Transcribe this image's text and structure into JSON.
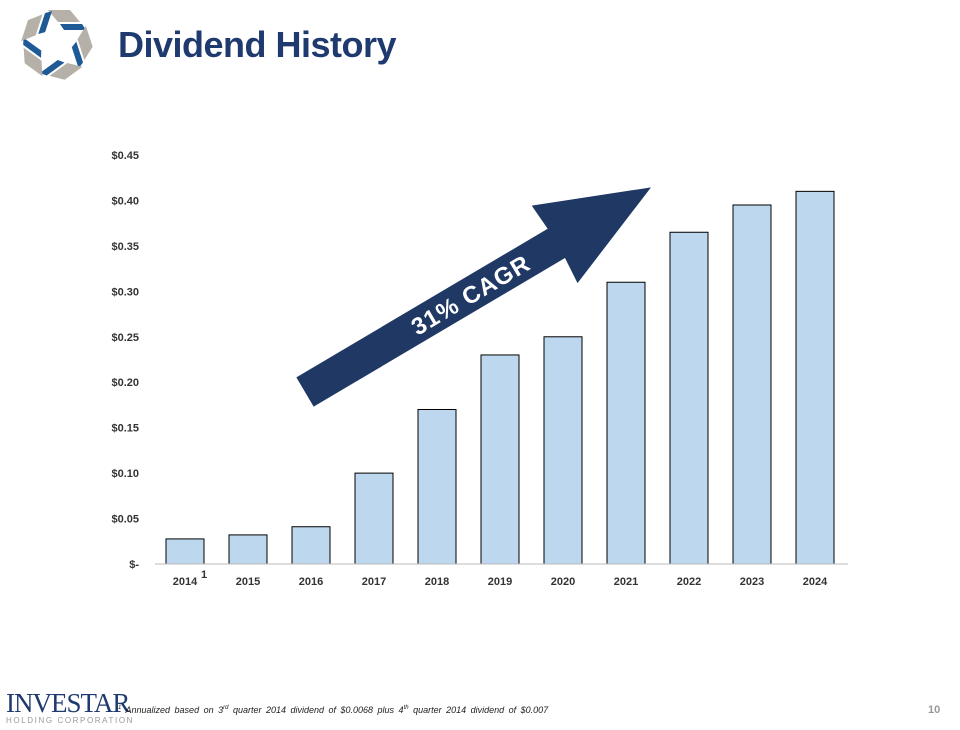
{
  "header": {
    "title": "Dividend History"
  },
  "footer": {
    "logo_name": "INVESTAR",
    "logo_sub": "HOLDING CORPORATION",
    "footnote_mark": "1",
    "footnote_parts": [
      "Annualized based on 3",
      "rd",
      " quarter 2014 dividend of $0.0068 plus 4",
      "th",
      " quarter 2014 dividend of $0.007"
    ],
    "page_number": "10"
  },
  "colors": {
    "bar_fill": "#bdd7ee",
    "bar_stroke": "#000000",
    "arrow": "#1f3864",
    "title": "#1f3a6e"
  },
  "chart_data": {
    "type": "bar",
    "categories": [
      "2014",
      "2015",
      "2016",
      "2017",
      "2018",
      "2019",
      "2020",
      "2021",
      "2022",
      "2023",
      "2024"
    ],
    "category_superscripts": {
      "2014": "1"
    },
    "values": [
      0.0276,
      0.032,
      0.041,
      0.1,
      0.17,
      0.23,
      0.25,
      0.31,
      0.365,
      0.395,
      0.41
    ],
    "ylim": [
      0,
      0.45
    ],
    "yticks": [
      0,
      0.05,
      0.1,
      0.15,
      0.2,
      0.25,
      0.3,
      0.35,
      0.4,
      0.45
    ],
    "ytick_labels": [
      "$-",
      "$0.05",
      "$0.10",
      "$0.15",
      "$0.20",
      "$0.25",
      "$0.30",
      "$0.35",
      "$0.40",
      "$0.45"
    ],
    "grid": false,
    "annotation": "31% CAGR"
  }
}
